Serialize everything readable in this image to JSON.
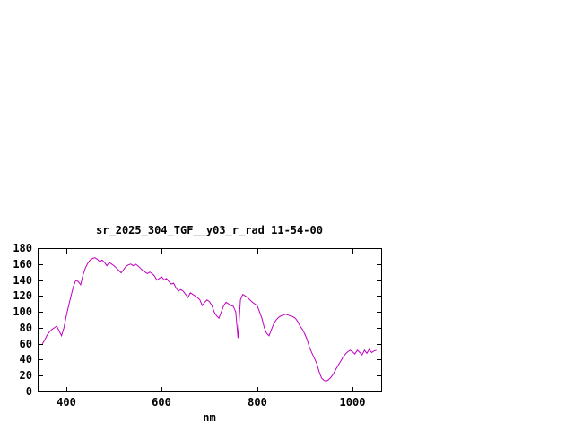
{
  "chart_data": {
    "type": "line",
    "title": "sr_2025_304_TGF__y03_r_rad 11-54-00",
    "xlabel": "nm",
    "ylabel": "",
    "xlim": [
      340,
      1060
    ],
    "ylim": [
      0,
      180
    ],
    "x_ticks": [
      400,
      600,
      800,
      1000
    ],
    "y_ticks": [
      0,
      20,
      40,
      60,
      80,
      100,
      120,
      140,
      160,
      180
    ],
    "grid": false,
    "legend": "none",
    "line_color": "#bf00bf",
    "border_color": "#000000",
    "x": [
      350,
      355,
      360,
      365,
      370,
      375,
      380,
      385,
      390,
      395,
      400,
      405,
      410,
      415,
      420,
      425,
      430,
      435,
      440,
      445,
      450,
      455,
      460,
      465,
      470,
      475,
      480,
      485,
      490,
      495,
      500,
      505,
      510,
      515,
      520,
      525,
      530,
      535,
      540,
      545,
      550,
      555,
      560,
      565,
      570,
      575,
      580,
      585,
      590,
      595,
      600,
      605,
      610,
      615,
      620,
      625,
      630,
      635,
      640,
      645,
      650,
      655,
      660,
      665,
      670,
      675,
      680,
      685,
      690,
      695,
      700,
      705,
      710,
      715,
      720,
      725,
      730,
      735,
      740,
      745,
      750,
      755,
      760,
      765,
      770,
      775,
      780,
      785,
      790,
      795,
      800,
      805,
      810,
      815,
      820,
      825,
      830,
      835,
      840,
      845,
      850,
      855,
      860,
      865,
      870,
      875,
      880,
      885,
      890,
      895,
      900,
      905,
      910,
      915,
      920,
      925,
      930,
      935,
      940,
      945,
      950,
      955,
      960,
      965,
      970,
      975,
      980,
      985,
      990,
      995,
      1000,
      1005,
      1010,
      1015,
      1020,
      1025,
      1030,
      1035,
      1040,
      1045,
      1050
    ],
    "y": [
      60,
      65,
      71,
      75,
      78,
      80,
      82,
      76,
      70,
      80,
      95,
      108,
      120,
      132,
      140,
      138,
      134,
      146,
      155,
      161,
      165,
      167,
      168,
      166,
      163,
      165,
      162,
      158,
      162,
      160,
      158,
      155,
      152,
      149,
      153,
      157,
      159,
      160,
      158,
      160,
      158,
      155,
      152,
      150,
      148,
      150,
      148,
      145,
      140,
      142,
      144,
      140,
      142,
      138,
      135,
      136,
      130,
      126,
      128,
      126,
      122,
      118,
      124,
      122,
      120,
      118,
      115,
      108,
      112,
      115,
      113,
      108,
      100,
      95,
      92,
      100,
      108,
      112,
      110,
      108,
      107,
      100,
      67,
      115,
      122,
      120,
      118,
      115,
      112,
      110,
      108,
      100,
      92,
      80,
      73,
      70,
      78,
      85,
      90,
      93,
      95,
      96,
      97,
      96,
      95,
      94,
      92,
      88,
      82,
      78,
      72,
      65,
      55,
      48,
      42,
      35,
      25,
      17,
      14,
      13,
      15,
      18,
      22,
      28,
      33,
      38,
      43,
      47,
      50,
      52,
      50,
      47,
      52,
      49,
      46,
      52,
      48,
      53,
      49,
      51,
      52
    ]
  }
}
